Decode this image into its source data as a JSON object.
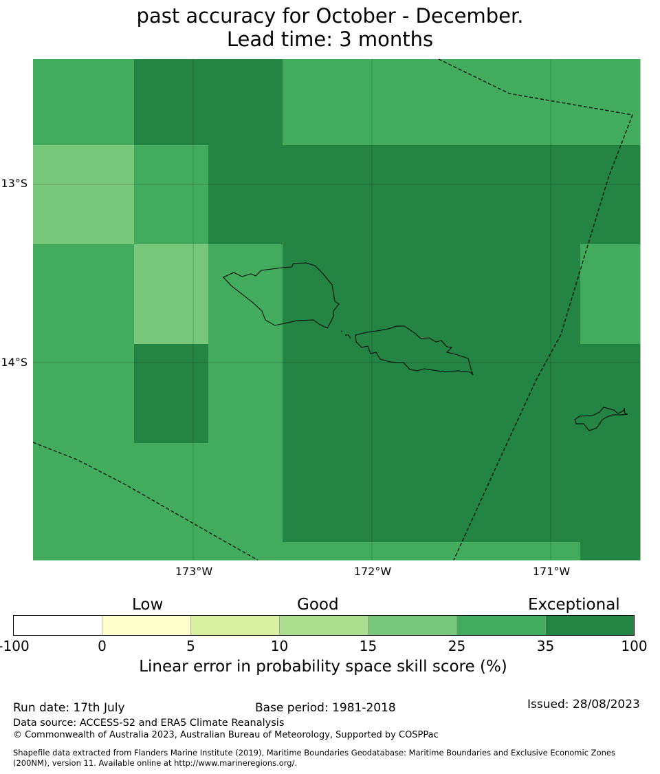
{
  "title": {
    "line1": "past accuracy for October - December.",
    "line2": "Lead time: 3 months"
  },
  "map": {
    "lat_labels": [
      "13°S",
      "14°S"
    ],
    "lon_labels": [
      "173°W",
      "172°W",
      "171°W"
    ],
    "grid_colors": [
      [
        "#42ab5d",
        "#238443",
        "#238443",
        "#42ab5d",
        "#42ab5d",
        "#42ab5d"
      ],
      [
        "#78c679",
        "#42ab5d",
        "#238443",
        "#238443",
        "#238443",
        "#238443"
      ],
      [
        "#42ab5d",
        "#78c679",
        "#42ab5d",
        "#238443",
        "#238443",
        "#42ab5d"
      ],
      [
        "#42ab5d",
        "#238443",
        "#42ab5d",
        "#238443",
        "#238443",
        "#238443"
      ],
      [
        "#42ab5d",
        "#42ab5d",
        "#42ab5d",
        "#238443",
        "#238443",
        "#238443"
      ],
      [
        "#42ab5d",
        "#42ab5d",
        "#42ab5d",
        "#42ab5d",
        "#42ab5d",
        "#238443"
      ]
    ],
    "colors": {
      "exceptional": "#238443",
      "good_plus": "#42ab5d",
      "good": "#78c679"
    }
  },
  "legend": {
    "categories": [
      "Low",
      "Good",
      "Exceptional"
    ],
    "ticks": [
      "-100",
      "0",
      "5",
      "10",
      "15",
      "25",
      "35",
      "100"
    ],
    "colors": [
      "#ffffff",
      "#ffffcc",
      "#d9f0a3",
      "#addd8e",
      "#78c679",
      "#42ab5d",
      "#238443"
    ],
    "title": "Linear error in probability space skill score (%)"
  },
  "footer": {
    "run_date": "Run date: 17th July",
    "base_period": "Base period: 1981-2018",
    "issued": "Issued: 28/08/2023",
    "data_source": "Data source: ACCESS-S2 and ERA5 Climate Reanalysis",
    "copyright": "© Commonwealth of Australia 2023, Australian Bureau of Meteorology, Supported by COSPPac",
    "shapefile_line1": "Shapefile data extracted from Flanders Marine Institute (2019), Maritime Boundaries Geodatabase: Maritime Boundaries and Exclusive Economic Zones",
    "shapefile_line2": "(200NM), version 11. Available online at http://www.marineregions.org/."
  }
}
